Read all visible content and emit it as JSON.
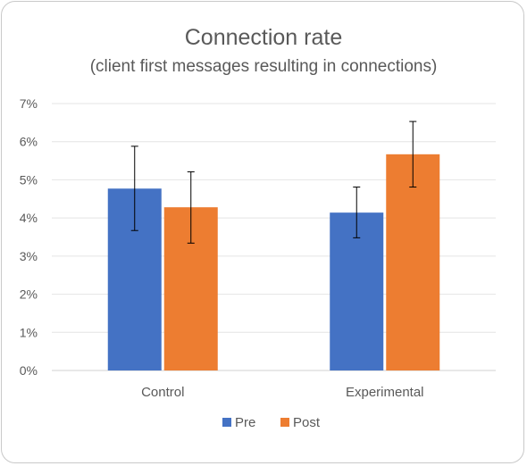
{
  "chart_data": {
    "type": "bar",
    "title": "Connection rate",
    "subtitle": "(client first messages resulting in connections)",
    "xlabel": "",
    "ylabel": "",
    "categories": [
      "Control",
      "Experimental"
    ],
    "series": [
      {
        "name": "Pre",
        "color": "#4472c4",
        "values": [
          4.77,
          4.14
        ],
        "err_low": [
          3.67,
          3.48
        ],
        "err_high": [
          5.88,
          4.81
        ]
      },
      {
        "name": "Post",
        "color": "#ed7d31",
        "values": [
          4.28,
          5.67
        ],
        "err_low": [
          3.34,
          4.81
        ],
        "err_high": [
          5.21,
          6.53
        ]
      }
    ],
    "ylim": [
      0,
      7
    ],
    "yticks": [
      0,
      1,
      2,
      3,
      4,
      5,
      6,
      7
    ],
    "ytick_labels": [
      "0%",
      "1%",
      "2%",
      "3%",
      "4%",
      "5%",
      "6%",
      "7%"
    ],
    "grid": true,
    "legend_position": "bottom"
  }
}
